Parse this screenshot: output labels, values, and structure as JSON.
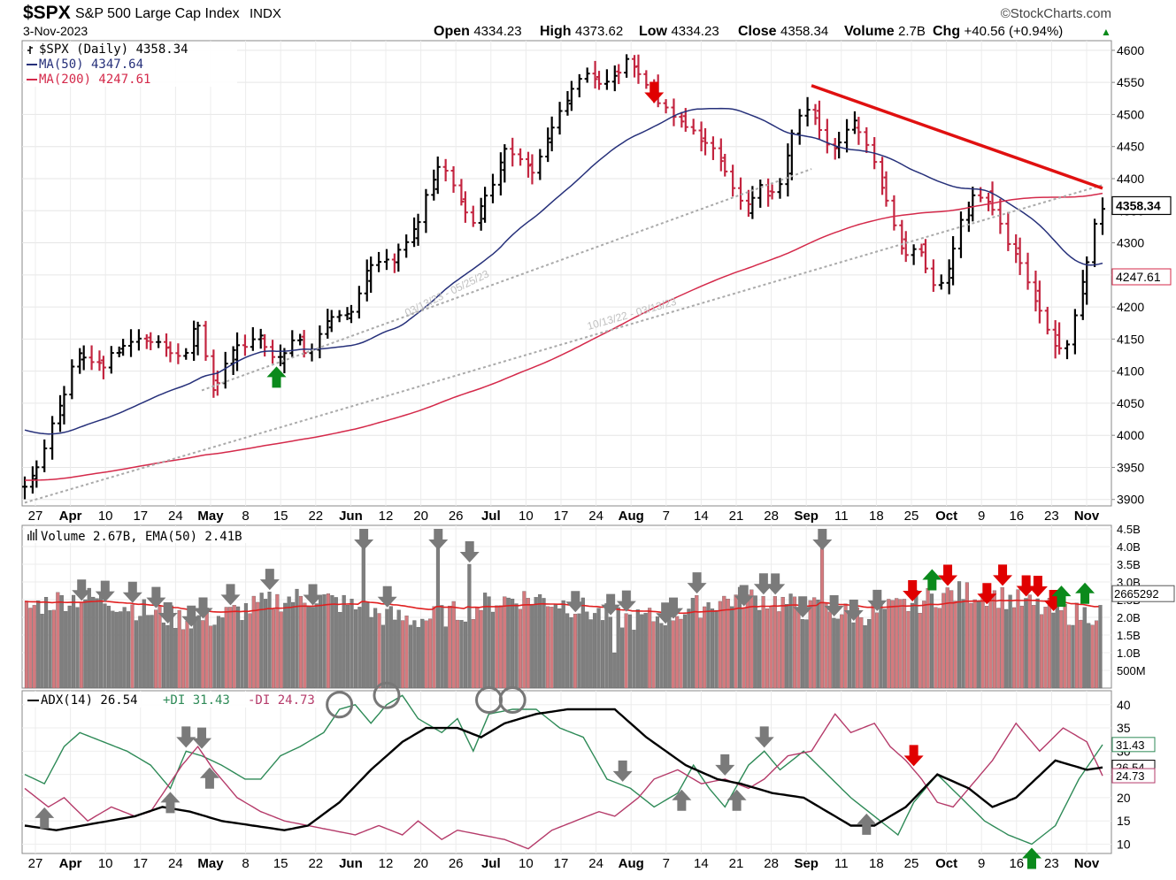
{
  "header": {
    "symbol": "$SPX",
    "name": "S&P 500 Large Cap Index",
    "exchange": "INDX",
    "brand": "©StockCharts.com",
    "date": "3-Nov-2023",
    "ohlc": [
      {
        "label": "Open",
        "value": "4334.23"
      },
      {
        "label": "High",
        "value": "4373.62"
      },
      {
        "label": "Low",
        "value": "4334.23"
      },
      {
        "label": "Close",
        "value": "4358.34"
      },
      {
        "label": "Volume",
        "value": "2.7B"
      },
      {
        "label": "Chg",
        "value": "+40.56 (+0.94%)"
      }
    ],
    "chg_arrow": "▲"
  },
  "colors": {
    "up_bar": "#000000",
    "down_bar": "#c3243f",
    "ma50": "#26307a",
    "ma200": "#d4294a",
    "trend_line": "#e01010",
    "plus_di": "#2e8a57",
    "minus_di": "#b53b6a",
    "adx": "#000000",
    "vol_up": "#7f7f7f",
    "vol_down": "#d47a7e",
    "arrow_gray": "#7a7a7a",
    "arrow_red": "#e00000",
    "arrow_green": "#0b8a1c"
  },
  "price_panel": {
    "legend": [
      {
        "icon": "ohlc-bar-icon",
        "text": "$SPX (Daily) 4358.34",
        "color": "#000000"
      },
      {
        "icon": "line-swatch-icon",
        "text": "MA(50) 4347.64",
        "color": "#26307a"
      },
      {
        "icon": "line-swatch-icon",
        "text": "MA(200) 4247.61",
        "color": "#d4294a"
      }
    ],
    "y_ticks": [
      "4600",
      "4550",
      "4500",
      "4450",
      "4400",
      "4350",
      "4300",
      "4250",
      "4200",
      "4150",
      "4100",
      "4050",
      "4000",
      "3950",
      "3900"
    ],
    "tags": [
      {
        "text": "4358.34",
        "style": "bold"
      },
      {
        "text": "4247.61",
        "style": "red"
      }
    ],
    "trend_labels": [
      "03/13/23 - 05/25/23",
      "10/13/22 - 03/13/23"
    ]
  },
  "volume_panel": {
    "legend": "Volume 2.67B, EMA(50) 2.41B",
    "y_ticks": [
      "4.5B",
      "4.0B",
      "3.5B",
      "3.0B",
      "2.5B",
      "2.0B",
      "1.5B",
      "1.0B",
      "500M"
    ],
    "tag": "2665292"
  },
  "adx_panel": {
    "legend": [
      "ADX(14) 26.54",
      "+DI 31.43",
      "-DI 24.73"
    ],
    "y_ticks": [
      "40",
      "35",
      "30",
      "25",
      "20",
      "15",
      "10"
    ],
    "tags": [
      "31.43",
      "26.54",
      "24.73"
    ]
  },
  "x_axis": {
    "labels": [
      {
        "text": "27",
        "bold": false
      },
      {
        "text": "Apr",
        "bold": true
      },
      {
        "text": "10",
        "bold": false
      },
      {
        "text": "17",
        "bold": false
      },
      {
        "text": "24",
        "bold": false
      },
      {
        "text": "May",
        "bold": true
      },
      {
        "text": "8",
        "bold": false
      },
      {
        "text": "15",
        "bold": false
      },
      {
        "text": "22",
        "bold": false
      },
      {
        "text": "Jun",
        "bold": true
      },
      {
        "text": "12",
        "bold": false
      },
      {
        "text": "20",
        "bold": false
      },
      {
        "text": "26",
        "bold": false
      },
      {
        "text": "Jul",
        "bold": true
      },
      {
        "text": "10",
        "bold": false
      },
      {
        "text": "17",
        "bold": false
      },
      {
        "text": "24",
        "bold": false
      },
      {
        "text": "Aug",
        "bold": true
      },
      {
        "text": "7",
        "bold": false
      },
      {
        "text": "14",
        "bold": false
      },
      {
        "text": "21",
        "bold": false
      },
      {
        "text": "28",
        "bold": false
      },
      {
        "text": "Sep",
        "bold": true
      },
      {
        "text": "11",
        "bold": false
      },
      {
        "text": "18",
        "bold": false
      },
      {
        "text": "25",
        "bold": false
      },
      {
        "text": "Oct",
        "bold": true
      },
      {
        "text": "9",
        "bold": false
      },
      {
        "text": "16",
        "bold": false
      },
      {
        "text": "23",
        "bold": false
      },
      {
        "text": "Nov",
        "bold": true
      }
    ]
  },
  "chart_data": {
    "type": "ohlc",
    "period": "daily",
    "price_range": [
      3890,
      4615
    ],
    "volume_range_billions": [
      0,
      4.6
    ],
    "adx_range": [
      8,
      43
    ],
    "anchors": [
      {
        "x": 0,
        "close": 3920
      },
      {
        "x": 4,
        "close": 3970
      },
      {
        "x": 8,
        "close": 4045
      },
      {
        "x": 12,
        "close": 4130
      },
      {
        "x": 18,
        "close": 4110
      },
      {
        "x": 24,
        "close": 4150
      },
      {
        "x": 30,
        "close": 4150
      },
      {
        "x": 36,
        "close": 4115
      },
      {
        "x": 40,
        "close": 4180
      },
      {
        "x": 43,
        "close": 4065
      },
      {
        "x": 48,
        "close": 4140
      },
      {
        "x": 54,
        "close": 4150
      },
      {
        "x": 58,
        "close": 4110
      },
      {
        "x": 62,
        "close": 4160
      },
      {
        "x": 65,
        "close": 4120
      },
      {
        "x": 70,
        "close": 4180
      },
      {
        "x": 75,
        "close": 4195
      },
      {
        "x": 80,
        "close": 4280
      },
      {
        "x": 84,
        "close": 4270
      },
      {
        "x": 88,
        "close": 4300
      },
      {
        "x": 92,
        "close": 4370
      },
      {
        "x": 95,
        "close": 4430
      },
      {
        "x": 100,
        "close": 4360
      },
      {
        "x": 103,
        "close": 4335
      },
      {
        "x": 107,
        "close": 4390
      },
      {
        "x": 110,
        "close": 4450
      },
      {
        "x": 113,
        "close": 4440
      },
      {
        "x": 116,
        "close": 4410
      },
      {
        "x": 120,
        "close": 4470
      },
      {
        "x": 124,
        "close": 4525
      },
      {
        "x": 128,
        "close": 4560
      },
      {
        "x": 132,
        "close": 4550
      },
      {
        "x": 136,
        "close": 4570
      },
      {
        "x": 138,
        "close": 4590
      },
      {
        "x": 141,
        "close": 4560
      },
      {
        "x": 146,
        "close": 4510
      },
      {
        "x": 150,
        "close": 4490
      },
      {
        "x": 154,
        "close": 4465
      },
      {
        "x": 158,
        "close": 4440
      },
      {
        "x": 162,
        "close": 4390
      },
      {
        "x": 165,
        "close": 4345
      },
      {
        "x": 168,
        "close": 4390
      },
      {
        "x": 171,
        "close": 4370
      },
      {
        "x": 174,
        "close": 4410
      },
      {
        "x": 177,
        "close": 4500
      },
      {
        "x": 180,
        "close": 4515
      },
      {
        "x": 184,
        "close": 4445
      },
      {
        "x": 187,
        "close": 4460
      },
      {
        "x": 190,
        "close": 4490
      },
      {
        "x": 193,
        "close": 4450
      },
      {
        "x": 196,
        "close": 4400
      },
      {
        "x": 199,
        "close": 4330
      },
      {
        "x": 202,
        "close": 4280
      },
      {
        "x": 205,
        "close": 4300
      },
      {
        "x": 208,
        "close": 4230
      },
      {
        "x": 211,
        "close": 4240
      },
      {
        "x": 214,
        "close": 4330
      },
      {
        "x": 217,
        "close": 4370
      },
      {
        "x": 220,
        "close": 4380
      },
      {
        "x": 224,
        "close": 4320
      },
      {
        "x": 227,
        "close": 4280
      },
      {
        "x": 230,
        "close": 4230
      },
      {
        "x": 233,
        "close": 4195
      },
      {
        "x": 236,
        "close": 4140
      },
      {
        "x": 238,
        "close": 4120
      },
      {
        "x": 241,
        "close": 4200
      },
      {
        "x": 243,
        "close": 4250
      },
      {
        "x": 245,
        "close": 4330
      },
      {
        "x": 247,
        "close": 4358
      }
    ],
    "volume_spikes": [
      {
        "x": 86,
        "billions": 4.2
      },
      {
        "x": 105,
        "billions": 4.2
      },
      {
        "x": 113,
        "billions": 3.5
      },
      {
        "x": 203,
        "billions": 4.3
      }
    ],
    "annotations": {
      "price_down_arrows": [
        {
          "x": 160,
          "price": 4515
        }
      ],
      "price_up_arrows": [
        {
          "x": 64,
          "price": 4110
        }
      ],
      "volume_gray_arrows": [
        14,
        20,
        27,
        33,
        36,
        42,
        45,
        52,
        62,
        73,
        86,
        92,
        105,
        113,
        140,
        149,
        153,
        163,
        165,
        171,
        183,
        188,
        191,
        198,
        203,
        206,
        211,
        217
      ],
      "volume_red_arrows": [
        226,
        235,
        245,
        249,
        255,
        258,
        262
      ],
      "volume_green_arrows": [
        231,
        264,
        270
      ],
      "adx_gray_down_arrows": [
        41,
        45,
        152,
        178,
        188
      ],
      "adx_gray_up_arrows": [
        5,
        37,
        47,
        167,
        181,
        214
      ],
      "adx_red_down_arrows": [
        226
      ],
      "adx_green_up_arrows": [
        256
      ],
      "adx_circles": [
        {
          "x": 80,
          "value": 40
        },
        {
          "x": 92,
          "value": 42
        },
        {
          "x": 118,
          "value": 41
        },
        {
          "x": 124,
          "value": 41
        }
      ]
    }
  }
}
